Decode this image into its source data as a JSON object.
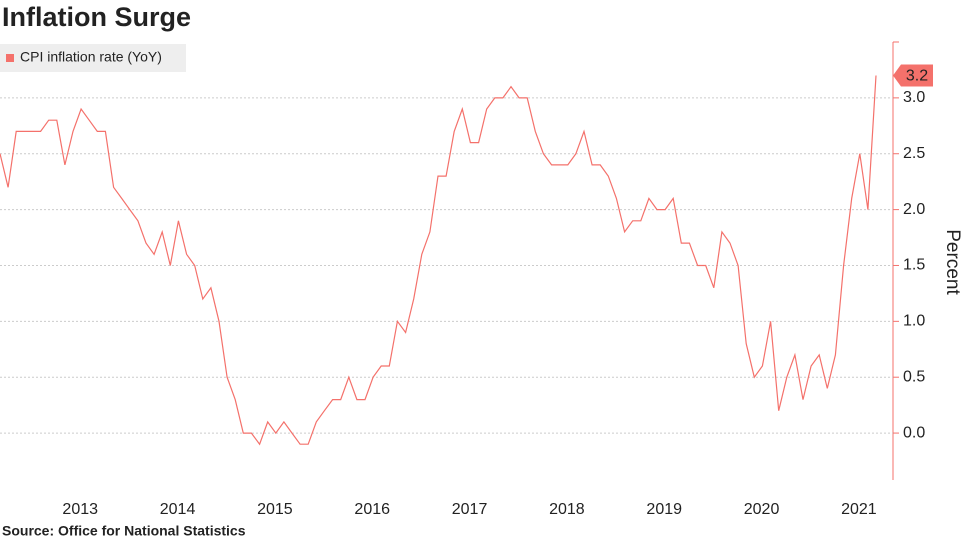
{
  "chart_data": {
    "type": "line",
    "title": "Inflation Surge",
    "source": "Source:  Office for National Statistics",
    "y_label": "Percent",
    "categories": [
      null,
      null,
      null,
      null,
      null,
      null,
      null,
      null,
      null,
      null,
      null,
      "2013",
      null,
      null,
      null,
      null,
      null,
      null,
      null,
      null,
      null,
      null,
      null,
      "2014",
      null,
      null,
      null,
      null,
      null,
      null,
      null,
      null,
      null,
      null,
      null,
      "2015",
      null,
      null,
      null,
      null,
      null,
      null,
      null,
      null,
      null,
      null,
      null,
      "2016",
      null,
      null,
      null,
      null,
      null,
      null,
      null,
      null,
      null,
      null,
      null,
      "2017",
      null,
      null,
      null,
      null,
      null,
      null,
      null,
      null,
      null,
      null,
      null,
      "2018",
      null,
      null,
      null,
      null,
      null,
      null,
      null,
      null,
      null,
      null,
      null,
      "2019",
      null,
      null,
      null,
      null,
      null,
      null,
      null,
      null,
      null,
      null,
      null,
      "2020",
      null,
      null,
      null,
      null,
      null,
      null,
      null,
      null,
      null,
      null,
      null,
      "2021",
      null
    ],
    "series": [
      {
        "name": "CPI inflation rate (YoY)",
        "color": "#f4716b",
        "values": [
          2.5,
          2.2,
          2.7,
          2.7,
          2.7,
          2.7,
          2.8,
          2.8,
          2.4,
          2.7,
          2.9,
          2.8,
          2.7,
          2.7,
          2.2,
          2.1,
          2.0,
          1.9,
          1.7,
          1.6,
          1.8,
          1.5,
          1.9,
          1.6,
          1.5,
          1.2,
          1.3,
          1.0,
          0.5,
          0.3,
          0.0,
          0.0,
          -0.1,
          0.1,
          0.0,
          0.1,
          0.0,
          -0.1,
          -0.1,
          0.1,
          0.2,
          0.3,
          0.3,
          0.5,
          0.3,
          0.3,
          0.5,
          0.6,
          0.6,
          1.0,
          0.9,
          1.2,
          1.6,
          1.8,
          2.3,
          2.3,
          2.7,
          2.9,
          2.6,
          2.6,
          2.9,
          3.0,
          3.0,
          3.1,
          3.0,
          3.0,
          2.7,
          2.5,
          2.4,
          2.4,
          2.4,
          2.5,
          2.7,
          2.4,
          2.4,
          2.3,
          2.1,
          1.8,
          1.9,
          1.9,
          2.1,
          2.0,
          2.0,
          2.1,
          1.7,
          1.7,
          1.5,
          1.5,
          1.3,
          1.8,
          1.7,
          1.5,
          0.8,
          0.5,
          0.6,
          1.0,
          0.2,
          0.5,
          0.7,
          0.3,
          0.6,
          0.7,
          0.4,
          0.7,
          1.5,
          2.1,
          2.5,
          2.0,
          3.2
        ]
      }
    ],
    "ylim": [
      -0.42,
      3.5
    ],
    "yticks": [
      {
        "value": 0,
        "label": "0.0"
      },
      0.5,
      {
        "value": 1,
        "label": "1.0"
      },
      1.5,
      {
        "value": 2,
        "label": "2.0"
      },
      2.5,
      {
        "value": 3,
        "label": "3.0"
      }
    ],
    "grid": true,
    "legend": "top-left"
  }
}
